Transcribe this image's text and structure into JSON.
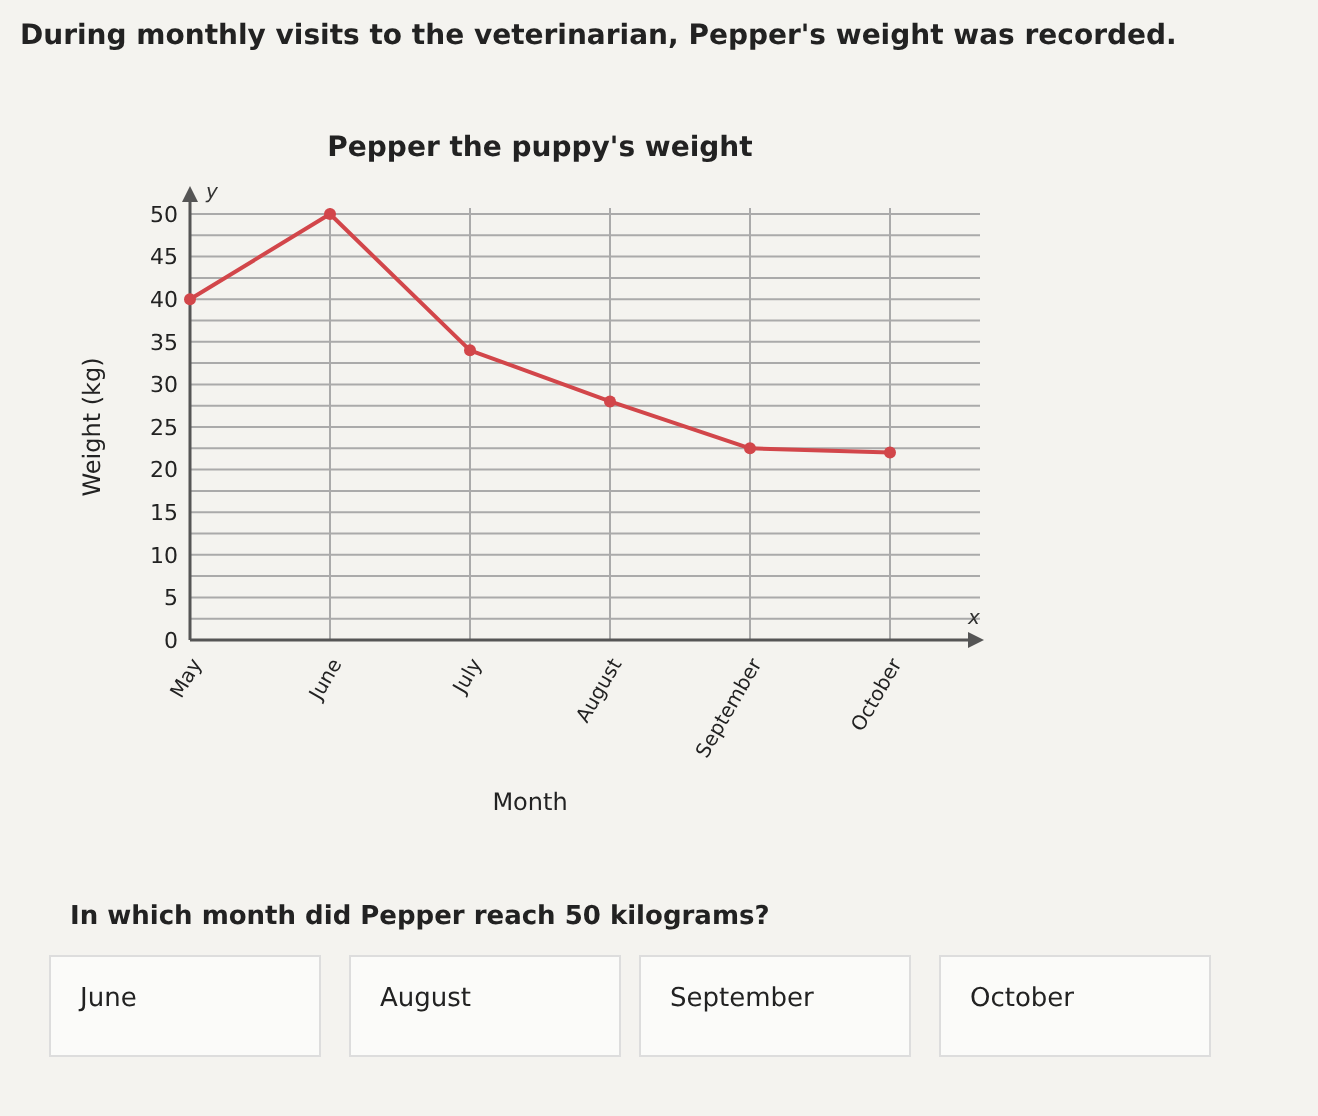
{
  "chart_data": {
    "type": "line",
    "title": "Pepper the puppy's weight",
    "xlabel": "Month",
    "ylabel": "Weight (kg)",
    "categories": [
      "May",
      "June",
      "July",
      "August",
      "September",
      "October"
    ],
    "series": [
      {
        "color": "#d2464a",
        "values": [
          40,
          50,
          34,
          28,
          22.5,
          22
        ]
      }
    ],
    "ylim": [
      0,
      50
    ],
    "yticks": [
      0,
      {
        "value": 2.5,
        "label": null
      },
      5,
      {
        "value": 7.5,
        "label": null
      },
      10,
      {
        "value": 12.5,
        "label": null
      },
      15,
      {
        "value": 17.5,
        "label": null
      },
      20,
      {
        "value": 22.5,
        "label": null
      },
      25,
      {
        "value": 27.5,
        "label": null
      },
      30,
      {
        "value": 32.5,
        "label": null
      },
      35,
      {
        "value": 37.5,
        "label": null
      },
      40,
      {
        "value": 42.5,
        "label": null
      },
      45,
      {
        "value": 47.5,
        "label": null
      },
      50
    ],
    "grid": true,
    "marker": "circle",
    "line_style": "solid",
    "annotations": [
      "During monthly visits to the veterinarian, Pepper's weight was recorded.",
      "y",
      "x",
      "In which month did Pepper reach 50 kilograms?",
      "June",
      "August",
      "September",
      "October"
    ]
  }
}
